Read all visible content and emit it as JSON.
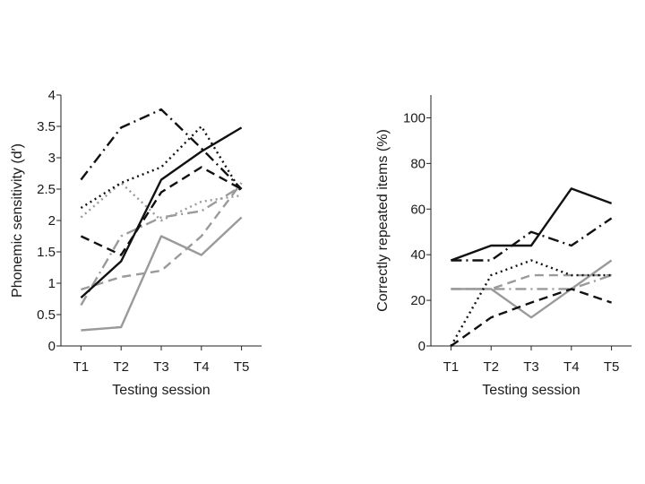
{
  "chart_data": [
    {
      "type": "line",
      "xlabel": "Testing session",
      "ylabel": "Phonemic sensitivity (d′)",
      "categories": [
        "T1",
        "T2",
        "T3",
        "T4",
        "T5"
      ],
      "ylim": [
        0,
        4
      ],
      "yticks": [
        "0",
        "0.5",
        "1",
        "1.5",
        "2",
        "2.5",
        "3",
        "3.5",
        "4"
      ],
      "grid": false,
      "series": [
        {
          "values": [
            0.77,
            1.35,
            2.65,
            3.1,
            3.48
          ],
          "color": "#111111",
          "dash": "solid"
        },
        {
          "values": [
            1.75,
            1.45,
            2.45,
            2.85,
            2.5
          ],
          "color": "#111111",
          "dash": "dashed"
        },
        {
          "values": [
            2.2,
            2.6,
            2.85,
            3.5,
            2.45
          ],
          "color": "#111111",
          "dash": "dotted"
        },
        {
          "values": [
            2.65,
            3.48,
            3.77,
            3.15,
            2.5
          ],
          "color": "#111111",
          "dash": "dashdot"
        },
        {
          "values": [
            0.25,
            0.3,
            1.75,
            1.45,
            2.05
          ],
          "color": "#9a9a9a",
          "dash": "solid"
        },
        {
          "values": [
            0.9,
            1.1,
            1.2,
            1.75,
            2.6
          ],
          "color": "#9a9a9a",
          "dash": "dashed"
        },
        {
          "values": [
            2.05,
            2.6,
            2.0,
            2.3,
            2.4
          ],
          "color": "#9a9a9a",
          "dash": "dotted"
        },
        {
          "values": [
            0.65,
            1.75,
            2.05,
            2.15,
            2.55
          ],
          "color": "#9a9a9a",
          "dash": "dashdot"
        }
      ]
    },
    {
      "type": "line",
      "xlabel": "Testing session",
      "ylabel": "Correctly repeated items (%)",
      "categories": [
        "T1",
        "T2",
        "T3",
        "T4",
        "T5"
      ],
      "ylim": [
        0,
        110
      ],
      "yticks": [
        "0",
        "20",
        "40",
        "60",
        "80",
        "100"
      ],
      "grid": false,
      "series": [
        {
          "values": [
            37.5,
            44,
            44,
            69,
            62.5
          ],
          "color": "#111111",
          "dash": "solid"
        },
        {
          "values": [
            0,
            12.5,
            19,
            25,
            19
          ],
          "color": "#111111",
          "dash": "dashed"
        },
        {
          "values": [
            0,
            31,
            37.5,
            31,
            31
          ],
          "color": "#111111",
          "dash": "dotted"
        },
        {
          "values": [
            37.5,
            37.5,
            50,
            44,
            56
          ],
          "color": "#111111",
          "dash": "dashdot"
        },
        {
          "values": [
            25,
            25,
            12.5,
            25,
            37.5
          ],
          "color": "#9a9a9a",
          "dash": "solid"
        },
        {
          "values": [
            25,
            25,
            31,
            31,
            31
          ],
          "color": "#9a9a9a",
          "dash": "dashed"
        },
        {
          "values": [
            25,
            25,
            25,
            25,
            31
          ],
          "color": "#9a9a9a",
          "dash": "dashdot"
        }
      ]
    }
  ]
}
